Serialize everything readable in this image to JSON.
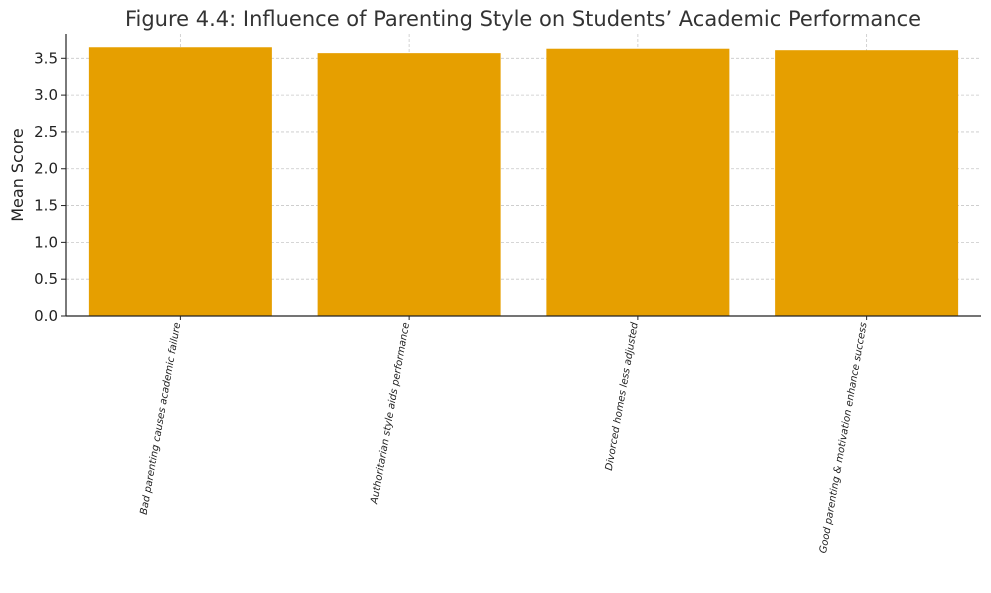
{
  "chart_data": {
    "type": "bar",
    "title": "Figure 4.4: Influence of Parenting Style on Students’ Academic Performance",
    "xlabel": "",
    "ylabel": "Mean Score",
    "categories": [
      "Bad parenting causes academic failure",
      "Authoritarian style aids performance",
      "Divorced homes less adjusted",
      "Good parenting & motivation enhance success"
    ],
    "values": [
      3.65,
      3.57,
      3.63,
      3.61
    ],
    "ylim": [
      0,
      3.83
    ],
    "yticks": [
      0.0,
      0.5,
      1.0,
      1.5,
      2.0,
      2.5,
      3.0,
      3.5
    ],
    "ytick_labels": [
      "0.0",
      "0.5",
      "1.0",
      "1.5",
      "2.0",
      "2.5",
      "3.0",
      "3.5"
    ],
    "grid": true,
    "bar_color": "#E69F00",
    "grid_color": "#c8c8c8",
    "axis_color": "#222222"
  }
}
